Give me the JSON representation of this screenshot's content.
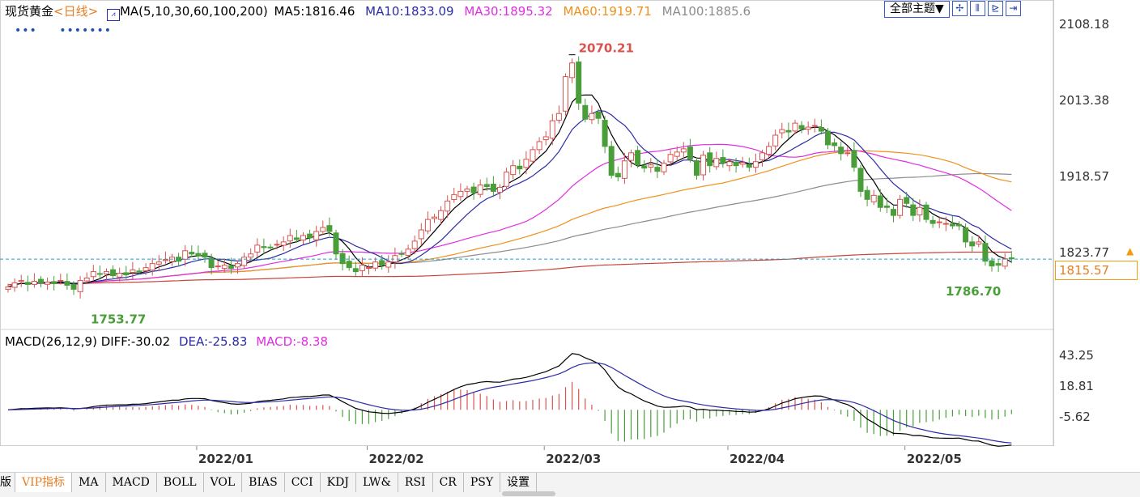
{
  "legend": {
    "title": "现货黄金",
    "period": "<日线>",
    "ma_label": "MA(5,10,30,60,100,200)",
    "ma5": "MA5:1816.46",
    "ma10": "MA10:1833.09",
    "ma30": "MA30:1895.32",
    "ma60": "MA60:1919.71",
    "ma100": "MA100:1885.6"
  },
  "colors": {
    "up": "#d9534f",
    "down": "#4a9e3a",
    "ma5": "#000000",
    "ma10": "#2b2ba8",
    "ma30": "#e02ee0",
    "ma60": "#f0901c",
    "ma100": "#8c8c8c",
    "ma200": "#c8463a",
    "dashed": "#1aa3c8"
  },
  "dots": {
    "a": "•••",
    "b": "•••••••"
  },
  "toolbar": {
    "theme_label": "全部主题▼",
    "icons": [
      "crosshair-icon",
      "bar-view-icon",
      "zoom-icon",
      "forward-icon"
    ]
  },
  "price_scale": [
    "2108.18",
    "2013.38",
    "1918.57",
    "1823.77"
  ],
  "current_price": "1815.57",
  "high_label": "2070.21",
  "low_label_left": "1753.77",
  "low_label_right": "1786.70",
  "macd_legend": {
    "name": "MACD(26,12,9)",
    "diff": "DIFF:-30.02",
    "dea": "DEA:-25.83",
    "macd": "MACD:-8.38"
  },
  "macd_scale": [
    "43.25",
    "18.81",
    "-5.62"
  ],
  "months": [
    "2022/01",
    "2022/02",
    "2022/03",
    "2022/04",
    "2022/05"
  ],
  "tabs": [
    "版",
    "VIP指标",
    "MA",
    "MACD",
    "BOLL",
    "VOL",
    "BIAS",
    "CCI",
    "KDJ",
    "LW&",
    "RSI",
    "CR",
    "PSY",
    "设置"
  ],
  "chart_data": {
    "type": "candlestick",
    "title": "现货黄金 <日线>",
    "ylim": [
      1745,
      2115
    ],
    "yticks": [
      2108.18,
      2013.38,
      1918.57,
      1823.77
    ],
    "x_month_labels": [
      "2022/01",
      "2022/02",
      "2022/03",
      "2022/04",
      "2022/05"
    ],
    "annotations": [
      {
        "label": "2070.21",
        "value": 2070.21
      },
      {
        "label": "1753.77",
        "value": 1753.77
      },
      {
        "label": "1786.70",
        "value": 1786.7
      }
    ],
    "last_price": 1815.57,
    "close": [
      1781,
      1786,
      1789,
      1784,
      1788,
      1786,
      1787,
      1785,
      1789,
      1783,
      1778,
      1789,
      1792,
      1800,
      1797,
      1800,
      1795,
      1798,
      1796,
      1802,
      1800,
      1805,
      1810,
      1812,
      1815,
      1818,
      1813,
      1826,
      1822,
      1820,
      1818,
      1805,
      1807,
      1808,
      1804,
      1810,
      1818,
      1822,
      1833,
      1830,
      1830,
      1834,
      1837,
      1845,
      1840,
      1845,
      1842,
      1850,
      1855,
      1850,
      1822,
      1810,
      1805,
      1800,
      1808,
      1805,
      1812,
      1808,
      1812,
      1820,
      1822,
      1828,
      1838,
      1852,
      1865,
      1868,
      1876,
      1888,
      1896,
      1900,
      1903,
      1898,
      1908,
      1906,
      1900,
      1905,
      1924,
      1932,
      1928,
      1940,
      1952,
      1962,
      1968,
      1988,
      1997,
      2043,
      2060,
      2010,
      1990,
      1997,
      1991,
      1956,
      1920,
      1918,
      1938,
      1948,
      1933,
      1929,
      1933,
      1925,
      1935,
      1946,
      1949,
      1953,
      1940,
      1920,
      1945,
      1932,
      1941,
      1935,
      1937,
      1932,
      1936,
      1930,
      1937,
      1948,
      1956,
      1970,
      1977,
      1974,
      1985,
      1978,
      1980,
      1982,
      1975,
      1958,
      1957,
      1947,
      1948,
      1930,
      1900,
      1890,
      1895,
      1880,
      1880,
      1870,
      1890,
      1885,
      1870,
      1880,
      1865,
      1860,
      1862,
      1860,
      1857,
      1857,
      1837,
      1832,
      1837,
      1813,
      1807,
      1808,
      1816,
      1816
    ],
    "ma_values": {
      "MA5": 1816.46,
      "MA10": 1833.09,
      "MA30": 1895.32,
      "MA60": 1919.71,
      "MA100": 1885.6
    },
    "macd": {
      "ylim": [
        -32,
        50
      ],
      "yticks": [
        43.25,
        18.81,
        -5.62
      ],
      "diff": -30.02,
      "dea": -25.83,
      "macd": -8.38
    }
  }
}
